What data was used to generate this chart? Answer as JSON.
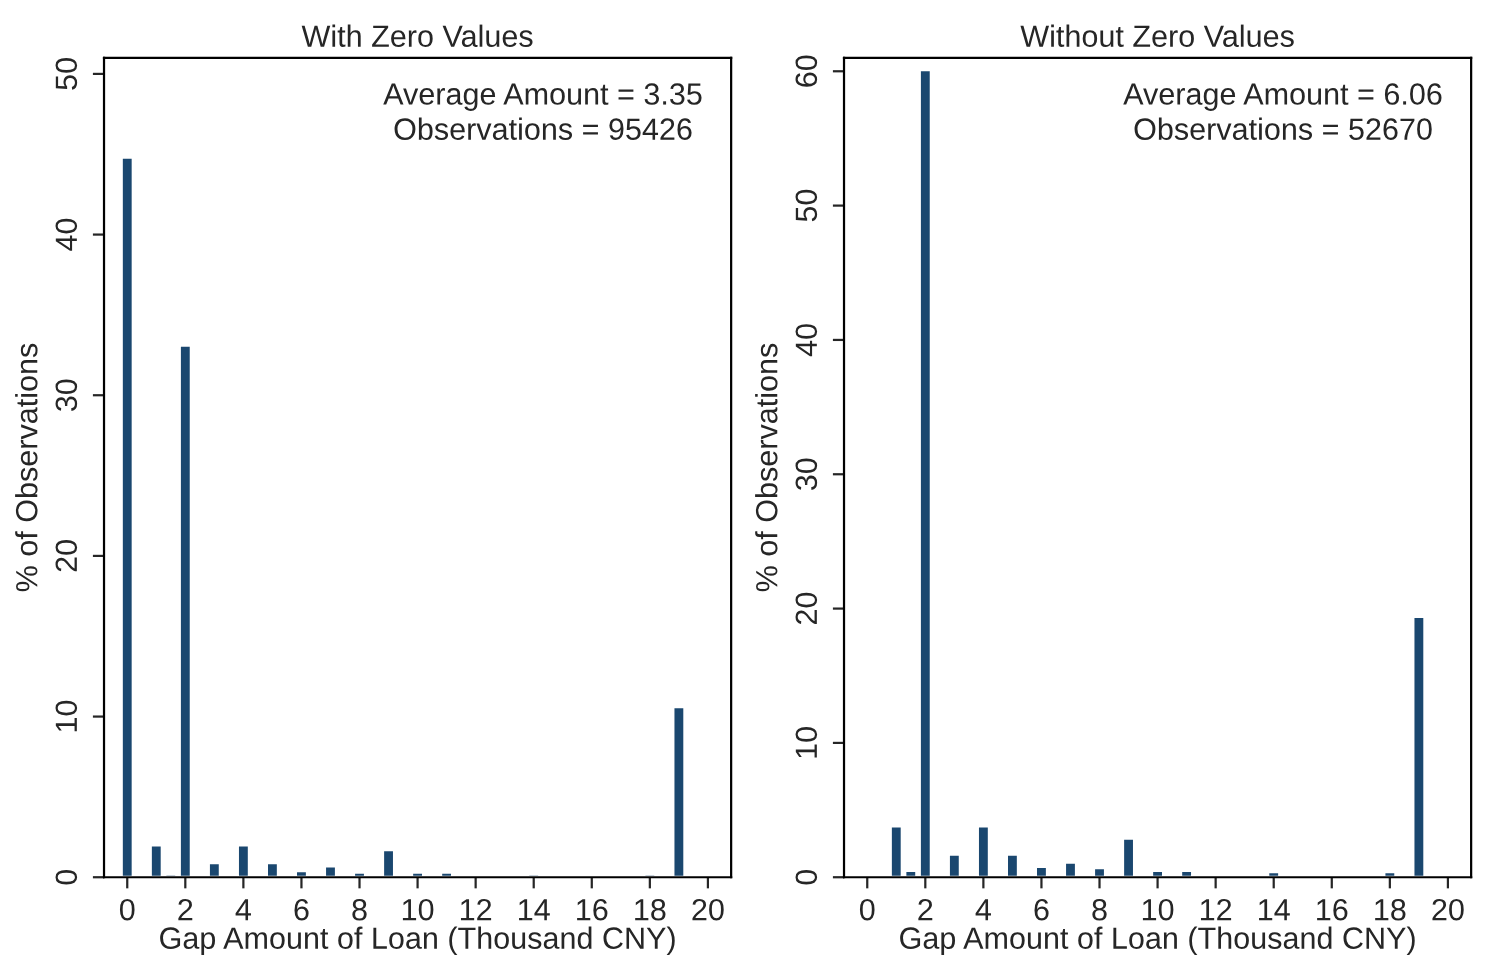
{
  "chart_data": [
    {
      "type": "histogram",
      "title": "With Zero Values",
      "xlabel": "Gap Amount of Loan (Thousand CNY)",
      "ylabel": "% of Observations",
      "color": "#1a476f",
      "bins": [
        -0.25,
        0.25,
        0.75,
        1.25,
        1.75,
        2.25,
        2.75,
        3.25,
        3.75,
        4.25,
        4.75,
        5.25,
        5.75,
        6.25,
        6.75,
        7.25,
        7.75,
        8.25,
        8.75,
        9.25,
        9.75,
        10.25,
        10.75,
        11.25,
        11.75,
        12.25,
        12.75,
        13.25,
        13.75,
        14.25,
        14.75,
        15.25,
        15.75,
        16.25,
        16.75,
        17.25,
        17.75,
        18.25,
        18.75,
        19.25
      ],
      "values": [
        44.8,
        0.1,
        2.0,
        0.2,
        33.1,
        0.1,
        0.9,
        0.1,
        2.0,
        0.1,
        0.9,
        0.1,
        0.4,
        0.1,
        0.7,
        0.1,
        0.3,
        0.1,
        1.7,
        0.1,
        0.3,
        0.1,
        0.3,
        0.1,
        0.1,
        0.1,
        0.1,
        0.1,
        0.2,
        0.1,
        0.1,
        0.1,
        0.1,
        0.1,
        0.1,
        0.1,
        0.2,
        0.1,
        10.6
      ],
      "xlim": [
        -0.8,
        20.8
      ],
      "xticks": [
        0,
        2,
        4,
        6,
        8,
        10,
        12,
        14,
        16,
        18,
        20
      ],
      "ylim": [
        0,
        51
      ],
      "yticks": [
        0,
        10,
        20,
        30,
        40,
        50
      ],
      "grid": false,
      "legend": false,
      "annotations": [
        "Average Amount = 3.35\nObservations = 95426"
      ]
    },
    {
      "type": "histogram",
      "title": "Without Zero Values",
      "xlabel": "Gap Amount of Loan (Thousand CNY)",
      "ylabel": "% of Observations",
      "color": "#1a476f",
      "bins": [
        -0.25,
        0.25,
        0.75,
        1.25,
        1.75,
        2.25,
        2.75,
        3.25,
        3.75,
        4.25,
        4.75,
        5.25,
        5.75,
        6.25,
        6.75,
        7.25,
        7.75,
        8.25,
        8.75,
        9.25,
        9.75,
        10.25,
        10.75,
        11.25,
        11.75,
        12.25,
        12.75,
        13.25,
        13.75,
        14.25,
        14.75,
        15.25,
        15.75,
        16.25,
        16.75,
        17.25,
        17.75,
        18.25,
        18.75,
        19.25
      ],
      "values": [
        null,
        0.2,
        3.8,
        0.5,
        60.1,
        0.1,
        1.7,
        0.1,
        3.8,
        0.1,
        1.7,
        0.1,
        0.8,
        0.1,
        1.1,
        0.1,
        0.7,
        0.1,
        2.9,
        0.1,
        0.5,
        0.1,
        0.5,
        0.1,
        0.2,
        0.1,
        0.2,
        0.1,
        0.4,
        0.1,
        0.1,
        0.1,
        0.1,
        0.1,
        0.2,
        0.1,
        0.4,
        0.1,
        19.4
      ],
      "xlim": [
        -0.8,
        20.8
      ],
      "xticks": [
        0,
        2,
        4,
        6,
        8,
        10,
        12,
        14,
        16,
        18,
        20
      ],
      "ylim": [
        0,
        61
      ],
      "yticks": [
        0,
        10,
        20,
        30,
        40,
        50,
        60
      ],
      "grid": false,
      "legend": false,
      "annotations": [
        "Average Amount = 6.06\nObservations = 52670"
      ]
    }
  ]
}
